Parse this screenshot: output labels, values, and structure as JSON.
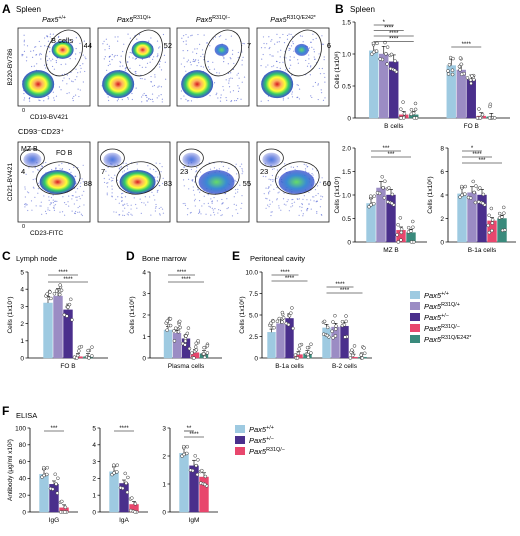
{
  "panel_letters": [
    "A",
    "B",
    "C",
    "D",
    "E",
    "F"
  ],
  "colors": {
    "wt": "#9ecae1",
    "r31q_plus": "#9b8cc4",
    "het": "#4a2f8c",
    "r31q_minus": "#e8476d",
    "r31q_e242": "#3a8a7c"
  },
  "legend": [
    {
      "gene": "Pax5",
      "sup": "+/+",
      "color": "#9ecae1"
    },
    {
      "gene": "Pax5",
      "sup": "R31Q/+",
      "color": "#9b8cc4"
    },
    {
      "gene": "Pax5",
      "sup": "+/−",
      "color": "#4a2f8c"
    },
    {
      "gene": "Pax5",
      "sup": "R31Q/−",
      "color": "#e8476d"
    },
    {
      "gene": "Pax5",
      "sup": "R31Q/E242*",
      "color": "#3a8a7c"
    }
  ],
  "legend_f": [
    {
      "gene": "Pax5",
      "sup": "+/+",
      "color": "#9ecae1"
    },
    {
      "gene": "Pax5",
      "sup": "+/−",
      "color": "#4a2f8c"
    },
    {
      "gene": "Pax5",
      "sup": "R31Q/−",
      "color": "#e8476d"
    }
  ],
  "panel_a": {
    "section": "Spleen",
    "genotypes": [
      {
        "gene": "Pax5",
        "sup": "+/+"
      },
      {
        "gene": "Pax5",
        "sup": "R31Q/+"
      },
      {
        "gene": "Pax5",
        "sup": "R31Q/−"
      },
      {
        "gene": "Pax5",
        "sup": "R31Q/E242*"
      }
    ],
    "row1": {
      "ylabel": "B220-BV786",
      "xlabel": "CD19-BV421",
      "gate_label": "B cells",
      "values": [
        "44",
        "52",
        "7",
        "6"
      ]
    },
    "row2": {
      "title": "CD93⁻CD23⁺",
      "ylabel": "CD21-BV421",
      "xlabel": "CD23-FITC",
      "gate1_label": "MZ B",
      "gate2_label": "FO B",
      "values": [
        [
          "4",
          "88"
        ],
        [
          "7",
          "83"
        ],
        [
          "23",
          "55"
        ],
        [
          "23",
          "60"
        ]
      ]
    },
    "axis_zero": "0"
  },
  "chart_data": [
    {
      "id": "B-spleen-top",
      "type": "bar",
      "section": "Spleen",
      "ylabel": "Cells (1x10⁸)",
      "ylim": [
        0,
        1.5
      ],
      "yticks": [
        "0",
        "0.5",
        "1.0",
        "1.5"
      ],
      "categories": [
        "B cells",
        "FO B"
      ],
      "series": [
        {
          "name": "Pax5+/+",
          "values": [
            1.05,
            0.82
          ]
        },
        {
          "name": "Pax5R31Q/+",
          "values": [
            1.0,
            0.75
          ]
        },
        {
          "name": "Pax5+/−",
          "values": [
            0.88,
            0.6
          ]
        },
        {
          "name": "Pax5R31Q/−",
          "values": [
            0.05,
            0.03
          ]
        },
        {
          "name": "Pax5R31Q/E242*",
          "values": [
            0.05,
            0.02
          ]
        }
      ],
      "signif": [
        "*",
        "****",
        "****",
        "****",
        "****"
      ]
    },
    {
      "id": "B-mzb",
      "type": "bar",
      "ylabel": "Cells (1x10⁷)",
      "ylim": [
        0,
        2.0
      ],
      "yticks": [
        "0",
        "0.5",
        "1.0",
        "1.5",
        "2.0"
      ],
      "categories": [
        "MZ B"
      ],
      "series": [
        {
          "name": "Pax5+/+",
          "values": [
            0.82
          ]
        },
        {
          "name": "Pax5R31Q/+",
          "values": [
            1.15
          ]
        },
        {
          "name": "Pax5+/−",
          "values": [
            1.0
          ]
        },
        {
          "name": "Pax5R31Q/−",
          "values": [
            0.25
          ]
        },
        {
          "name": "Pax5R31Q/E242*",
          "values": [
            0.2
          ]
        }
      ],
      "signif": [
        "***",
        "***"
      ]
    },
    {
      "id": "B-b1a",
      "type": "bar",
      "ylabel": "Cells (1x10⁶)",
      "ylim": [
        0,
        8
      ],
      "yticks": [
        "0",
        "2",
        "4",
        "6",
        "8"
      ],
      "categories": [
        "B-1a cells"
      ],
      "series": [
        {
          "name": "Pax5+/+",
          "values": [
            4.1
          ]
        },
        {
          "name": "Pax5R31Q/+",
          "values": [
            4.2
          ]
        },
        {
          "name": "Pax5+/−",
          "values": [
            4.0
          ]
        },
        {
          "name": "Pax5R31Q/−",
          "values": [
            1.8
          ]
        },
        {
          "name": "Pax5R31Q/E242*",
          "values": [
            2.0
          ]
        }
      ],
      "signif": [
        "*",
        "****",
        "***"
      ]
    },
    {
      "id": "C",
      "type": "bar",
      "section": "Lymph node",
      "ylabel": "Cells (1x10⁷)",
      "ylim": [
        0,
        5
      ],
      "yticks": [
        "0",
        "1",
        "2",
        "3",
        "4",
        "5"
      ],
      "categories": [
        "FO B"
      ],
      "series": [
        {
          "name": "Pax5+/+",
          "values": [
            3.2
          ]
        },
        {
          "name": "Pax5R31Q/+",
          "values": [
            3.6
          ]
        },
        {
          "name": "Pax5+/−",
          "values": [
            2.8
          ]
        },
        {
          "name": "Pax5R31Q/−",
          "values": [
            0.08
          ]
        },
        {
          "name": "Pax5R31Q/E242*",
          "values": [
            0.08
          ]
        }
      ],
      "signif": [
        "****",
        "****"
      ]
    },
    {
      "id": "D",
      "type": "bar",
      "section": "Bone marrow",
      "ylabel": "Cells (1x10⁶)",
      "ylim": [
        0,
        4
      ],
      "yticks": [
        "0",
        "1",
        "2",
        "3",
        "4"
      ],
      "categories": [
        "Plasma cells"
      ],
      "series": [
        {
          "name": "Pax5+/+",
          "values": [
            1.3
          ]
        },
        {
          "name": "Pax5R31Q/+",
          "values": [
            1.15
          ]
        },
        {
          "name": "Pax5+/−",
          "values": [
            0.9
          ]
        },
        {
          "name": "Pax5R31Q/−",
          "values": [
            0.25
          ]
        },
        {
          "name": "Pax5R31Q/E242*",
          "values": [
            0.2
          ]
        }
      ],
      "signif": [
        "****",
        "****"
      ]
    },
    {
      "id": "E",
      "type": "bar",
      "section": "Peritoneal cavity",
      "ylabel": "Cells (1x10⁶)",
      "ylim": [
        0,
        10
      ],
      "yticks": [
        "0",
        "2.5",
        "5.0",
        "7.5",
        "10.0"
      ],
      "categories": [
        "B-1a cells",
        "B-2 cells"
      ],
      "series": [
        {
          "name": "Pax5+/+",
          "values": [
            3.0,
            3.5
          ]
        },
        {
          "name": "Pax5R31Q/+",
          "values": [
            4.0,
            3.6
          ]
        },
        {
          "name": "Pax5+/−",
          "values": [
            4.6,
            3.7
          ]
        },
        {
          "name": "Pax5R31Q/−",
          "values": [
            0.4,
            0.1
          ]
        },
        {
          "name": "Pax5R31Q/E242*",
          "values": [
            0.5,
            0.1
          ]
        }
      ],
      "signif": [
        "****",
        "****",
        "****",
        "****"
      ]
    },
    {
      "id": "F-IgG",
      "type": "bar",
      "section": "ELISA",
      "ylabel": "Antibody (μg/ml x10²)",
      "ylim": [
        0,
        100
      ],
      "yticks": [
        "0",
        "20",
        "40",
        "60",
        "80",
        "100"
      ],
      "categories": [
        "IgG"
      ],
      "series": [
        {
          "name": "Pax5+/+",
          "values": [
            45
          ]
        },
        {
          "name": "Pax5+/−",
          "values": [
            33
          ]
        },
        {
          "name": "Pax5R31Q/−",
          "values": [
            5
          ]
        }
      ],
      "signif": [
        "***"
      ]
    },
    {
      "id": "F-IgA",
      "type": "bar",
      "ylim": [
        0,
        5
      ],
      "yticks": [
        "0",
        "1",
        "2",
        "3",
        "4",
        "5"
      ],
      "categories": [
        "IgA"
      ],
      "series": [
        {
          "name": "Pax5+/+",
          "values": [
            2.4
          ]
        },
        {
          "name": "Pax5+/−",
          "values": [
            1.7
          ]
        },
        {
          "name": "Pax5R31Q/−",
          "values": [
            0.45
          ]
        }
      ],
      "signif": [
        "****"
      ]
    },
    {
      "id": "F-IgM",
      "type": "bar",
      "ylim": [
        0,
        3
      ],
      "yticks": [
        "0",
        "1",
        "2",
        "3"
      ],
      "categories": [
        "IgM"
      ],
      "series": [
        {
          "name": "Pax5+/+",
          "values": [
            2.1
          ]
        },
        {
          "name": "Pax5+/−",
          "values": [
            1.65
          ]
        },
        {
          "name": "Pax5R31Q/−",
          "values": [
            1.25
          ]
        }
      ],
      "signif": [
        "**",
        "****"
      ]
    }
  ]
}
